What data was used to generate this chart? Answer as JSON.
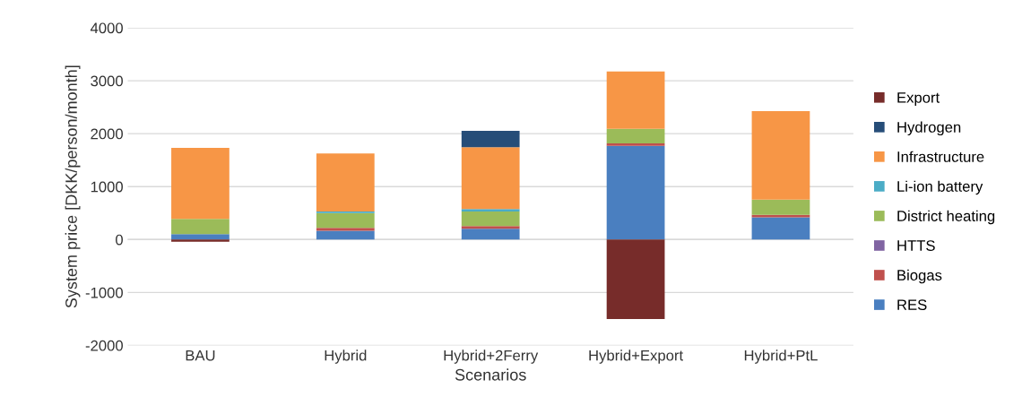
{
  "chart_data": {
    "type": "bar",
    "stacked": true,
    "xlabel": "Scenarios",
    "ylabel": "System price [DKK/person/month]",
    "categories": [
      "BAU",
      "Hybrid",
      "Hybrid+2Ferry",
      "Hybrid+Export",
      "Hybrid+PtL"
    ],
    "series": [
      {
        "name": "RES",
        "color": "#4a7fc0",
        "values": [
          100,
          165,
          205,
          1770,
          420
        ]
      },
      {
        "name": "Biogas",
        "color": "#c0504d",
        "values": [
          0,
          55,
          50,
          45,
          45
        ]
      },
      {
        "name": "HTTS",
        "color": "#8064a2",
        "values": [
          0,
          0,
          0,
          0,
          0
        ]
      },
      {
        "name": "District heating",
        "color": "#9bbb59",
        "values": [
          290,
          280,
          275,
          275,
          290
        ]
      },
      {
        "name": "Li-ion battery",
        "color": "#4bacc6",
        "values": [
          0,
          30,
          45,
          0,
          0
        ]
      },
      {
        "name": "Infrastructure",
        "color": "#f79646",
        "values": [
          1340,
          1095,
          1170,
          1085,
          1670
        ]
      },
      {
        "name": "Hydrogen",
        "color": "#264d78",
        "values": [
          0,
          0,
          310,
          0,
          0
        ]
      },
      {
        "name": "Export",
        "color": "#772c2a",
        "values": [
          -40,
          0,
          0,
          -1500,
          0
        ]
      }
    ],
    "ylim": [
      -2000,
      4000
    ],
    "yticks": [
      -2000,
      -1000,
      0,
      1000,
      2000,
      3000,
      4000
    ],
    "grid": "y",
    "legend": "right"
  }
}
